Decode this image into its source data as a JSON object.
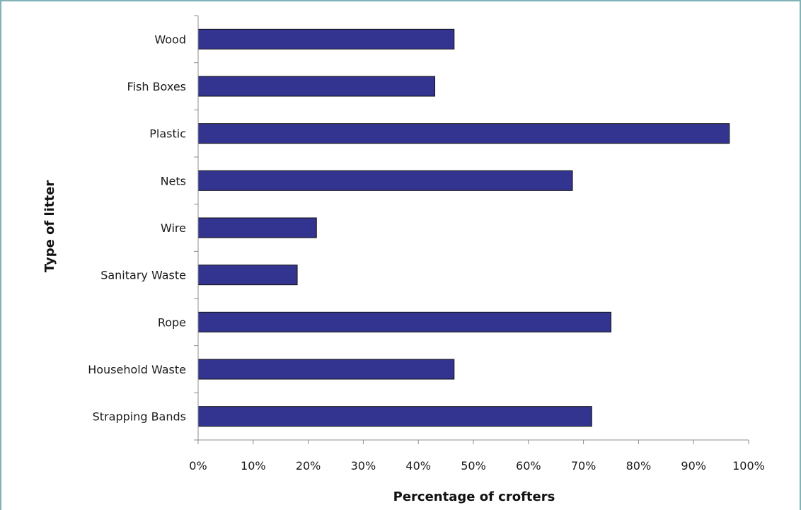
{
  "chart_data": {
    "type": "bar",
    "orientation": "horizontal",
    "categories": [
      "Wood",
      "Fish Boxes",
      "Plastic",
      "Nets",
      "Wire",
      "Sanitary Waste",
      "Rope",
      "Household Waste",
      "Strapping Bands"
    ],
    "values": [
      46.5,
      43,
      96.5,
      68,
      21.5,
      18,
      75,
      46.5,
      71.5
    ],
    "xlabel": "Percentage of crofters",
    "ylabel": "Type of litter",
    "xlim": [
      0,
      100
    ],
    "x_ticks": [
      "0%",
      "10%",
      "20%",
      "30%",
      "40%",
      "50%",
      "60%",
      "70%",
      "80%",
      "90%",
      "100%"
    ],
    "grid": false,
    "legend": "none",
    "bar_color": "#33348f"
  }
}
